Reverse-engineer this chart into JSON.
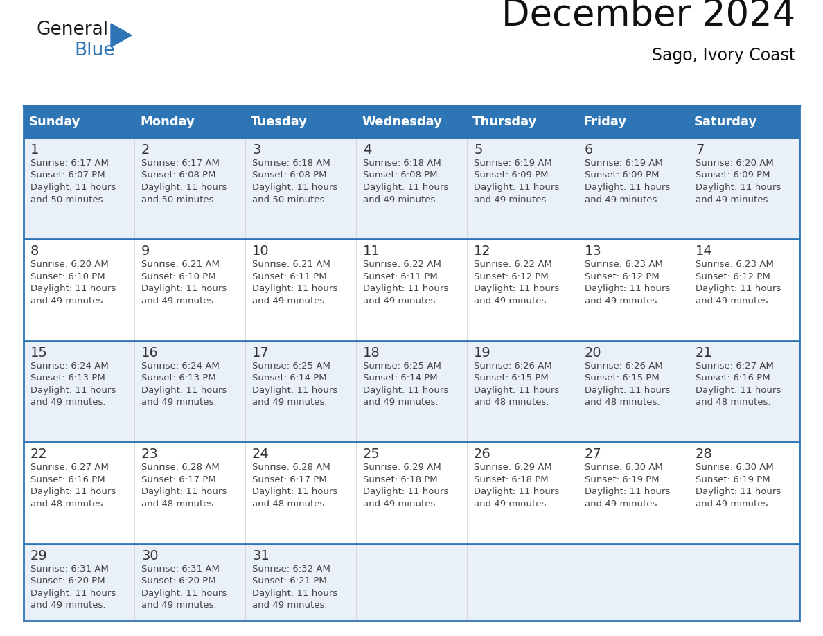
{
  "title": "December 2024",
  "subtitle": "Sago, Ivory Coast",
  "header_color": "#2e75b6",
  "header_text_color": "#ffffff",
  "row_bg_even": "#eaf0f8",
  "row_bg_odd": "#ffffff",
  "border_color": "#2e75b6",
  "thin_line_color": "#cccccc",
  "days_of_week": [
    "Sunday",
    "Monday",
    "Tuesday",
    "Wednesday",
    "Thursday",
    "Friday",
    "Saturday"
  ],
  "title_fontsize": 38,
  "subtitle_fontsize": 17,
  "header_fontsize": 13,
  "day_num_fontsize": 13,
  "info_fontsize": 9.5,
  "logo_color1": "#1a1a1a",
  "logo_color2": "#2e75b6",
  "weeks": [
    [
      {
        "day": 1,
        "sunrise": "6:17 AM",
        "sunset": "6:07 PM",
        "daylight": "11 hours and 50 minutes."
      },
      {
        "day": 2,
        "sunrise": "6:17 AM",
        "sunset": "6:08 PM",
        "daylight": "11 hours and 50 minutes."
      },
      {
        "day": 3,
        "sunrise": "6:18 AM",
        "sunset": "6:08 PM",
        "daylight": "11 hours and 50 minutes."
      },
      {
        "day": 4,
        "sunrise": "6:18 AM",
        "sunset": "6:08 PM",
        "daylight": "11 hours and 49 minutes."
      },
      {
        "day": 5,
        "sunrise": "6:19 AM",
        "sunset": "6:09 PM",
        "daylight": "11 hours and 49 minutes."
      },
      {
        "day": 6,
        "sunrise": "6:19 AM",
        "sunset": "6:09 PM",
        "daylight": "11 hours and 49 minutes."
      },
      {
        "day": 7,
        "sunrise": "6:20 AM",
        "sunset": "6:09 PM",
        "daylight": "11 hours and 49 minutes."
      }
    ],
    [
      {
        "day": 8,
        "sunrise": "6:20 AM",
        "sunset": "6:10 PM",
        "daylight": "11 hours and 49 minutes."
      },
      {
        "day": 9,
        "sunrise": "6:21 AM",
        "sunset": "6:10 PM",
        "daylight": "11 hours and 49 minutes."
      },
      {
        "day": 10,
        "sunrise": "6:21 AM",
        "sunset": "6:11 PM",
        "daylight": "11 hours and 49 minutes."
      },
      {
        "day": 11,
        "sunrise": "6:22 AM",
        "sunset": "6:11 PM",
        "daylight": "11 hours and 49 minutes."
      },
      {
        "day": 12,
        "sunrise": "6:22 AM",
        "sunset": "6:12 PM",
        "daylight": "11 hours and 49 minutes."
      },
      {
        "day": 13,
        "sunrise": "6:23 AM",
        "sunset": "6:12 PM",
        "daylight": "11 hours and 49 minutes."
      },
      {
        "day": 14,
        "sunrise": "6:23 AM",
        "sunset": "6:12 PM",
        "daylight": "11 hours and 49 minutes."
      }
    ],
    [
      {
        "day": 15,
        "sunrise": "6:24 AM",
        "sunset": "6:13 PM",
        "daylight": "11 hours and 49 minutes."
      },
      {
        "day": 16,
        "sunrise": "6:24 AM",
        "sunset": "6:13 PM",
        "daylight": "11 hours and 49 minutes."
      },
      {
        "day": 17,
        "sunrise": "6:25 AM",
        "sunset": "6:14 PM",
        "daylight": "11 hours and 49 minutes."
      },
      {
        "day": 18,
        "sunrise": "6:25 AM",
        "sunset": "6:14 PM",
        "daylight": "11 hours and 49 minutes."
      },
      {
        "day": 19,
        "sunrise": "6:26 AM",
        "sunset": "6:15 PM",
        "daylight": "11 hours and 48 minutes."
      },
      {
        "day": 20,
        "sunrise": "6:26 AM",
        "sunset": "6:15 PM",
        "daylight": "11 hours and 48 minutes."
      },
      {
        "day": 21,
        "sunrise": "6:27 AM",
        "sunset": "6:16 PM",
        "daylight": "11 hours and 48 minutes."
      }
    ],
    [
      {
        "day": 22,
        "sunrise": "6:27 AM",
        "sunset": "6:16 PM",
        "daylight": "11 hours and 48 minutes."
      },
      {
        "day": 23,
        "sunrise": "6:28 AM",
        "sunset": "6:17 PM",
        "daylight": "11 hours and 48 minutes."
      },
      {
        "day": 24,
        "sunrise": "6:28 AM",
        "sunset": "6:17 PM",
        "daylight": "11 hours and 48 minutes."
      },
      {
        "day": 25,
        "sunrise": "6:29 AM",
        "sunset": "6:18 PM",
        "daylight": "11 hours and 49 minutes."
      },
      {
        "day": 26,
        "sunrise": "6:29 AM",
        "sunset": "6:18 PM",
        "daylight": "11 hours and 49 minutes."
      },
      {
        "day": 27,
        "sunrise": "6:30 AM",
        "sunset": "6:19 PM",
        "daylight": "11 hours and 49 minutes."
      },
      {
        "day": 28,
        "sunrise": "6:30 AM",
        "sunset": "6:19 PM",
        "daylight": "11 hours and 49 minutes."
      }
    ],
    [
      {
        "day": 29,
        "sunrise": "6:31 AM",
        "sunset": "6:20 PM",
        "daylight": "11 hours and 49 minutes."
      },
      {
        "day": 30,
        "sunrise": "6:31 AM",
        "sunset": "6:20 PM",
        "daylight": "11 hours and 49 minutes."
      },
      {
        "day": 31,
        "sunrise": "6:32 AM",
        "sunset": "6:21 PM",
        "daylight": "11 hours and 49 minutes."
      },
      null,
      null,
      null,
      null
    ]
  ]
}
